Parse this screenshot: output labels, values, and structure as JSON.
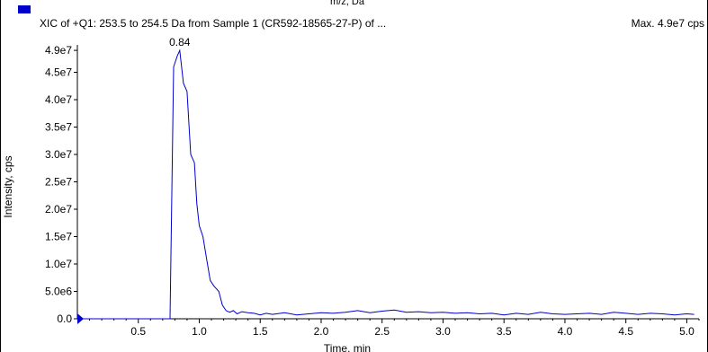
{
  "header": {
    "top_cutoff_label": "m/z, Da",
    "trace_title": "XIC of +Q1: 253.5 to 254.5 Da from Sample 1 (CR592-18565-27-P) of ...",
    "max_label": "Max. 4.9e7 cps",
    "legend_color": "#0000cc"
  },
  "chart_data": {
    "type": "line",
    "xlabel": "Time, min",
    "ylabel": "Intensity, cps",
    "xlim": [
      0.0,
      5.1
    ],
    "ylim": [
      0,
      50000000
    ],
    "x_ticks": [
      0.5,
      1.0,
      1.5,
      2.0,
      2.5,
      3.0,
      3.5,
      4.0,
      4.5,
      5.0
    ],
    "x_tick_labels": [
      "0.5",
      "1.0",
      "1.5",
      "2.0",
      "2.5",
      "3.0",
      "3.5",
      "4.0",
      "4.5",
      "5.0"
    ],
    "y_ticks": [
      0,
      5000000,
      10000000,
      15000000,
      20000000,
      25000000,
      30000000,
      35000000,
      40000000,
      45000000,
      49000000
    ],
    "y_tick_labels": [
      "0.0",
      "5.0e6",
      "1.0e7",
      "1.5e7",
      "2.0e7",
      "2.5e7",
      "3.0e7",
      "3.5e7",
      "4.0e7",
      "4.5e7",
      "4.9e7"
    ],
    "line_color": "#0000cc",
    "peak_annotation": {
      "x": 0.84,
      "y": 49000000,
      "label": "0.84"
    },
    "series": [
      {
        "x": [
          0.0,
          0.1,
          0.2,
          0.3,
          0.4,
          0.5,
          0.6,
          0.7,
          0.76,
          0.79,
          0.82,
          0.84,
          0.87,
          0.9,
          0.93,
          0.96,
          0.98,
          1.0,
          1.03,
          1.06,
          1.09,
          1.12,
          1.16,
          1.19,
          1.22,
          1.25,
          1.28,
          1.31,
          1.35,
          1.4,
          1.45,
          1.5,
          1.55,
          1.6,
          1.7,
          1.8,
          1.9,
          2.0,
          2.1,
          2.2,
          2.3,
          2.4,
          2.5,
          2.6,
          2.7,
          2.8,
          2.9,
          3.0,
          3.1,
          3.2,
          3.3,
          3.4,
          3.5,
          3.6,
          3.7,
          3.8,
          3.9,
          4.0,
          4.1,
          4.2,
          4.3,
          4.4,
          4.5,
          4.6,
          4.7,
          4.8,
          4.9,
          5.0,
          5.06
        ],
        "y": [
          0,
          0,
          0,
          0,
          0,
          0,
          0,
          0,
          0,
          46000000,
          48000000,
          49000000,
          43000000,
          41500000,
          30000000,
          28500000,
          21000000,
          17000000,
          15000000,
          11000000,
          7000000,
          6000000,
          5000000,
          2500000,
          1500000,
          1200000,
          1500000,
          900000,
          1300000,
          1100000,
          1000000,
          700000,
          1000000,
          800000,
          1100000,
          700000,
          900000,
          1100000,
          1000000,
          1200000,
          1500000,
          1100000,
          1400000,
          1600000,
          1200000,
          1300000,
          1100000,
          1200000,
          1000000,
          1100000,
          900000,
          1000000,
          700000,
          1000000,
          800000,
          1200000,
          900000,
          800000,
          900000,
          1000000,
          800000,
          1200000,
          1000000,
          800000,
          1000000,
          900000,
          700000,
          900000,
          800000
        ]
      }
    ]
  }
}
